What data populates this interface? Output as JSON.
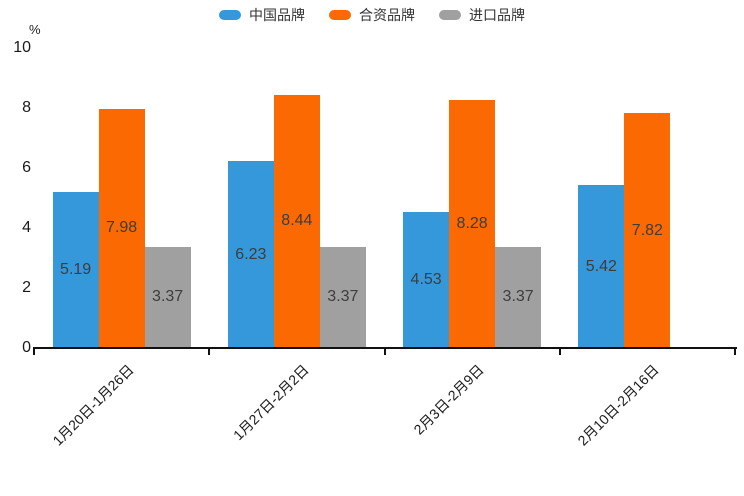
{
  "chart_data": {
    "type": "bar",
    "title": "",
    "unit_label": "%",
    "categories": [
      "1月20日-1月26日",
      "1月27日-2月2日",
      "2月3日-2月9日",
      "2月10日-2月16日"
    ],
    "series": [
      {
        "name": "中国品牌",
        "color": "#3498db",
        "values": [
          5.19,
          6.23,
          4.53,
          5.42
        ]
      },
      {
        "name": "合资品牌",
        "color": "#fb6a02",
        "values": [
          7.98,
          8.44,
          8.28,
          7.82
        ]
      },
      {
        "name": "进口品牌",
        "color": "#a0a0a0",
        "values": [
          3.37,
          3.37,
          3.37,
          null
        ]
      }
    ],
    "ylim": [
      0,
      10
    ],
    "yticks": [
      0,
      2,
      4,
      6,
      8,
      10
    ],
    "grid": false,
    "legend_position": "top",
    "value_labels": true,
    "value_label_color": "#3d3d3d",
    "axis_color": "#111111",
    "xlabel_rotation_deg": 45
  }
}
